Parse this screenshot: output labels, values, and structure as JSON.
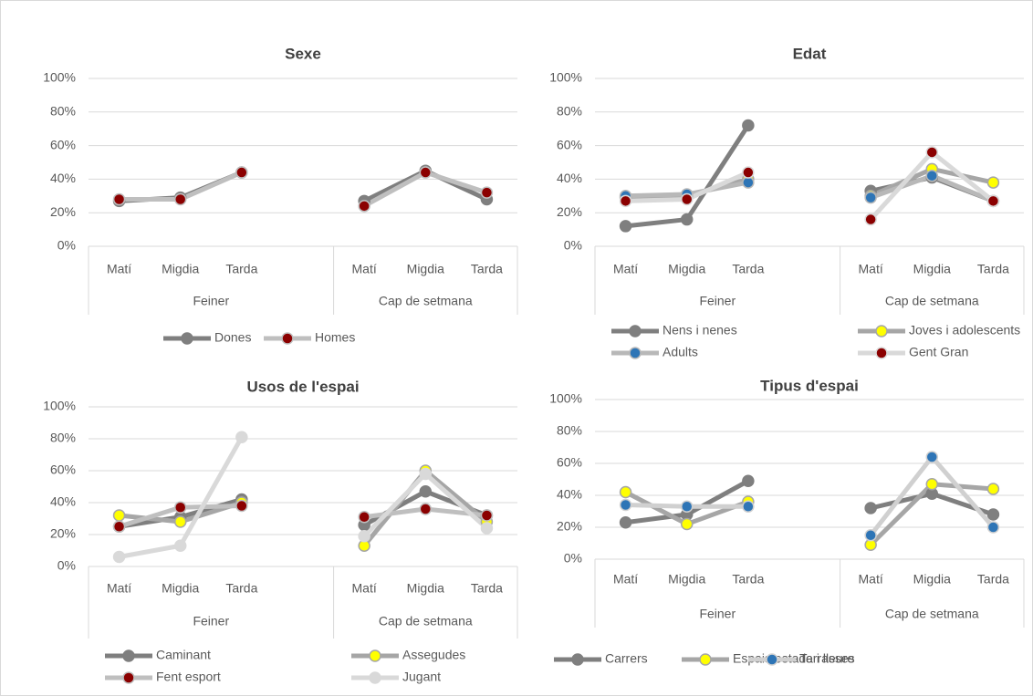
{
  "chart_data": [
    {
      "type": "line",
      "title": "Sexe",
      "groups": [
        {
          "name": "Feiner",
          "categories": [
            "Matí",
            "Migdia",
            "Tarda",
            null
          ]
        },
        {
          "name": "Cap de setmana",
          "categories": [
            "Matí",
            "Migdia",
            "Tarda"
          ]
        }
      ],
      "ylim": [
        0,
        100
      ],
      "yticks": [
        {
          "value": 0,
          "label": "0%"
        },
        {
          "value": 20,
          "label": "20%"
        },
        {
          "value": 40,
          "label": "40%"
        },
        {
          "value": 60,
          "label": "60%"
        },
        {
          "value": 80,
          "label": "80%"
        },
        {
          "value": 100,
          "label": "100%"
        }
      ],
      "grid": true,
      "legend": "bottom",
      "series": [
        {
          "name": "Dones",
          "color": "#7f7f7f",
          "marker_color": "#7f7f7f",
          "values": [
            27,
            29,
            44,
            null,
            27,
            45,
            28
          ]
        },
        {
          "name": "Homes",
          "color": "#bfbfbf",
          "marker_color": "#8b0000",
          "values": [
            28,
            28,
            44,
            null,
            24,
            44,
            32
          ]
        }
      ]
    },
    {
      "type": "line",
      "title": "Edat",
      "groups": [
        {
          "name": "Feiner",
          "categories": [
            "Matí",
            "Migdia",
            "Tarda",
            null
          ]
        },
        {
          "name": "Cap de setmana",
          "categories": [
            "Matí",
            "Migdia",
            "Tarda"
          ]
        }
      ],
      "ylim": [
        0,
        100
      ],
      "yticks": [
        {
          "value": 0,
          "label": "0%"
        },
        {
          "value": 20,
          "label": "20%"
        },
        {
          "value": 40,
          "label": "40%"
        },
        {
          "value": 60,
          "label": "60%"
        },
        {
          "value": 80,
          "label": "80%"
        },
        {
          "value": 100,
          "label": "100%"
        }
      ],
      "grid": true,
      "legend": "bottom",
      "series": [
        {
          "name": "Nens i nenes",
          "color": "#7f7f7f",
          "marker_color": "#7f7f7f",
          "values": [
            12,
            16,
            72,
            null,
            33,
            41,
            27
          ]
        },
        {
          "name": "Joves i adolescents",
          "color": "#a6a6a6",
          "marker_color": "#ffff00",
          "values": [
            29,
            30,
            40,
            null,
            30,
            46,
            38
          ]
        },
        {
          "name": "Adults",
          "color": "#b8b8b8",
          "marker_color": "#2e75b6",
          "values": [
            30,
            31,
            38,
            null,
            29,
            42,
            27
          ]
        },
        {
          "name": "Gent Gran",
          "color": "#d9d9d9",
          "marker_color": "#8b0000",
          "values": [
            27,
            28,
            44,
            null,
            16,
            56,
            27
          ]
        }
      ]
    },
    {
      "type": "line",
      "title": "Usos de l'espai",
      "groups": [
        {
          "name": "Feiner",
          "categories": [
            "Matí",
            "Migdia",
            "Tarda",
            null
          ]
        },
        {
          "name": "Cap de setmana",
          "categories": [
            "Matí",
            "Migdia",
            "Tarda"
          ]
        }
      ],
      "ylim": [
        0,
        100
      ],
      "yticks": [
        {
          "value": 0,
          "label": "0%"
        },
        {
          "value": 20,
          "label": "20%"
        },
        {
          "value": 40,
          "label": "40%"
        },
        {
          "value": 60,
          "label": "60%"
        },
        {
          "value": 80,
          "label": "80%"
        },
        {
          "value": 100,
          "label": "100%"
        }
      ],
      "grid": true,
      "legend": "bottom",
      "series": [
        {
          "name": "Caminant",
          "color": "#7f7f7f",
          "marker_color": "#7f7f7f",
          "values": [
            25,
            31,
            42,
            null,
            26,
            47,
            32
          ]
        },
        {
          "name": "Assegudes",
          "color": "#a6a6a6",
          "marker_color": "#ffff00",
          "values": [
            32,
            28,
            40,
            null,
            13,
            60,
            28
          ]
        },
        {
          "name": "Fent esport",
          "color": "#bfbfbf",
          "marker_color": "#8b0000",
          "values": [
            25,
            37,
            38,
            null,
            31,
            36,
            32
          ]
        },
        {
          "name": "Jugant",
          "color": "#d9d9d9",
          "marker_color": "#d9d9d9",
          "values": [
            6,
            13,
            81,
            null,
            19,
            58,
            24
          ]
        }
      ]
    },
    {
      "type": "line",
      "title": "Tipus d'espai",
      "groups": [
        {
          "name": "Feiner",
          "categories": [
            "Matí",
            "Migdia",
            "Tarda",
            null
          ]
        },
        {
          "name": "Cap de setmana",
          "categories": [
            "Matí",
            "Migdia",
            "Tarda"
          ]
        }
      ],
      "ylim": [
        0,
        100
      ],
      "yticks": [
        {
          "value": 0,
          "label": "0%"
        },
        {
          "value": 20,
          "label": "20%"
        },
        {
          "value": 40,
          "label": "40%"
        },
        {
          "value": 60,
          "label": "60%"
        },
        {
          "value": 80,
          "label": "80%"
        },
        {
          "value": 100,
          "label": "100%"
        }
      ],
      "grid": true,
      "legend": "bottom",
      "series": [
        {
          "name": "Carrers",
          "color": "#7f7f7f",
          "marker_color": "#7f7f7f",
          "values": [
            23,
            28,
            49,
            null,
            32,
            41,
            28
          ]
        },
        {
          "name": "Espais estada i lleure",
          "color": "#a6a6a6",
          "marker_color": "#ffff00",
          "values": [
            42,
            22,
            36,
            null,
            9,
            47,
            44
          ]
        },
        {
          "name": "Terrasses",
          "color": "#d0d0d0",
          "marker_color": "#2e75b6",
          "values": [
            34,
            33,
            33,
            null,
            15,
            64,
            20
          ]
        }
      ]
    }
  ]
}
